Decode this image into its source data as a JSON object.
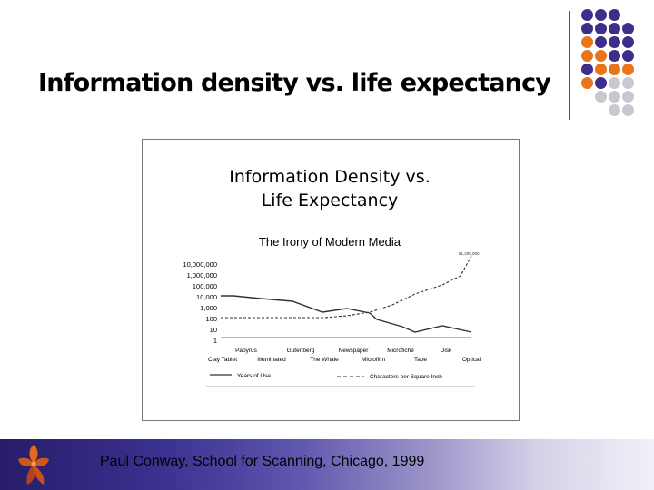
{
  "slide": {
    "title": "Information density vs. life expectancy",
    "footer": "Paul Conway, School for Scanning, Chicago, 1999"
  },
  "figure": {
    "title_lines": [
      "Information Density vs.",
      "Life Expectancy"
    ],
    "subtitle": "The Irony of Modern Media",
    "y_tick_labels": [
      "10,000,000",
      "1,000,000",
      "100,000",
      "10,000",
      "1,000",
      "100",
      "10",
      "1"
    ],
    "media_top": [
      "Papyrus",
      "Gutenberg",
      "Newspaper",
      "Microfiche",
      "Disk"
    ],
    "media_bottom": [
      "Clay Tablet",
      "Illuminated",
      "The Whale",
      "Microfilm",
      "Tape",
      "Optical"
    ],
    "legend": {
      "years": "Years of Use",
      "chars": "Characters per Square Inch"
    },
    "top_value_label": "51,200,000"
  },
  "colors": {
    "purple": "#3d2e8c",
    "orange": "#e8741c",
    "gray": "#c8c8d0",
    "footer_dark": "#271d6a"
  },
  "dots": [
    [
      "purple",
      "purple",
      "purple",
      ""
    ],
    [
      "purple",
      "purple",
      "purple",
      "purple"
    ],
    [
      "orange",
      "purple",
      "purple",
      "purple"
    ],
    [
      "orange",
      "orange",
      "purple",
      "purple"
    ],
    [
      "purple",
      "orange",
      "orange",
      "orange"
    ],
    [
      "orange",
      "purple",
      "gray",
      "gray"
    ],
    [
      "",
      "gray",
      "gray",
      "gray"
    ],
    [
      "",
      "",
      "gray",
      "gray"
    ]
  ]
}
